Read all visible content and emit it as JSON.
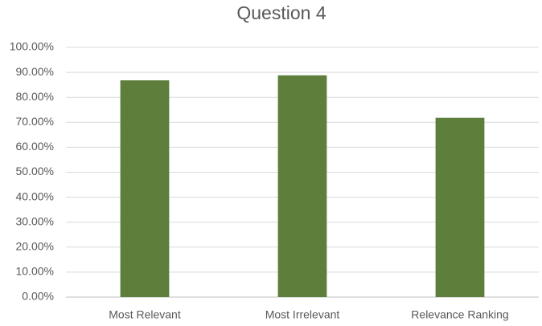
{
  "chart_data": {
    "type": "bar",
    "title": "Question 4",
    "categories": [
      "Most Relevant",
      "Most Irrelevant",
      "Relevance Ranking"
    ],
    "values": [
      86.8,
      88.8,
      71.8
    ],
    "color": "#5e7e3b",
    "ylim": [
      0,
      100
    ],
    "yticks": [
      {
        "value": 0,
        "label": "0.00%"
      },
      {
        "value": 10,
        "label": "10.00%"
      },
      {
        "value": 20,
        "label": "20.00%"
      },
      {
        "value": 30,
        "label": "30.00%"
      },
      {
        "value": 40,
        "label": "40.00%"
      },
      {
        "value": 50,
        "label": "50.00%"
      },
      {
        "value": 60,
        "label": "60.00%"
      },
      {
        "value": 70,
        "label": "70.00%"
      },
      {
        "value": 80,
        "label": "80.00%"
      },
      {
        "value": 90,
        "label": "90.00%"
      },
      {
        "value": 100,
        "label": "100.00%"
      }
    ],
    "grid": true
  }
}
